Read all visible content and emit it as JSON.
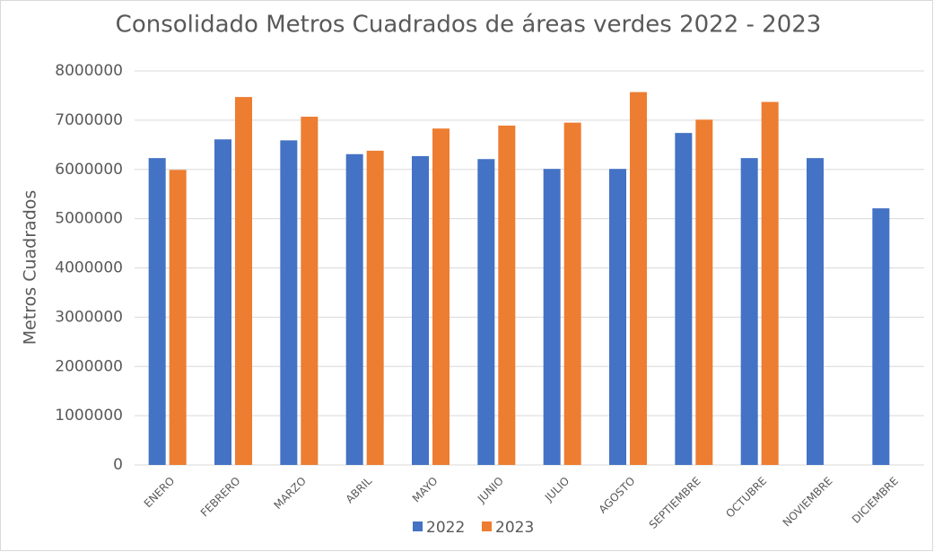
{
  "chart_data": {
    "type": "bar",
    "title": "Consolidado Metros Cuadrados de áreas verdes 2022 - 2023",
    "y_label": "Metros Cuadrados",
    "categories": [
      "ENERO",
      "FEBRERO",
      "MARZO",
      "ABRIL",
      "MAYO",
      "JUNIO",
      "JULIO",
      "AGOSTO",
      "SEPTIEMBRE",
      "OCTUBRE",
      "NOVIEMBRE",
      "DICIEMBRE"
    ],
    "series": [
      {
        "name": "2022",
        "color": "#4472c4",
        "values": [
          6230000,
          6610000,
          6590000,
          6310000,
          6270000,
          6210000,
          6010000,
          6010000,
          6740000,
          6230000,
          6230000,
          5210000
        ]
      },
      {
        "name": "2023",
        "color": "#ed7d31",
        "values": [
          5990000,
          7470000,
          7070000,
          6380000,
          6830000,
          6890000,
          6950000,
          7570000,
          7010000,
          7370000,
          null,
          null
        ]
      }
    ],
    "ylim": [
      0,
      8000000
    ],
    "yticks": [
      0,
      1000000,
      2000000,
      3000000,
      4000000,
      5000000,
      6000000,
      7000000,
      8000000
    ],
    "grid": true,
    "legend": "bottom"
  }
}
